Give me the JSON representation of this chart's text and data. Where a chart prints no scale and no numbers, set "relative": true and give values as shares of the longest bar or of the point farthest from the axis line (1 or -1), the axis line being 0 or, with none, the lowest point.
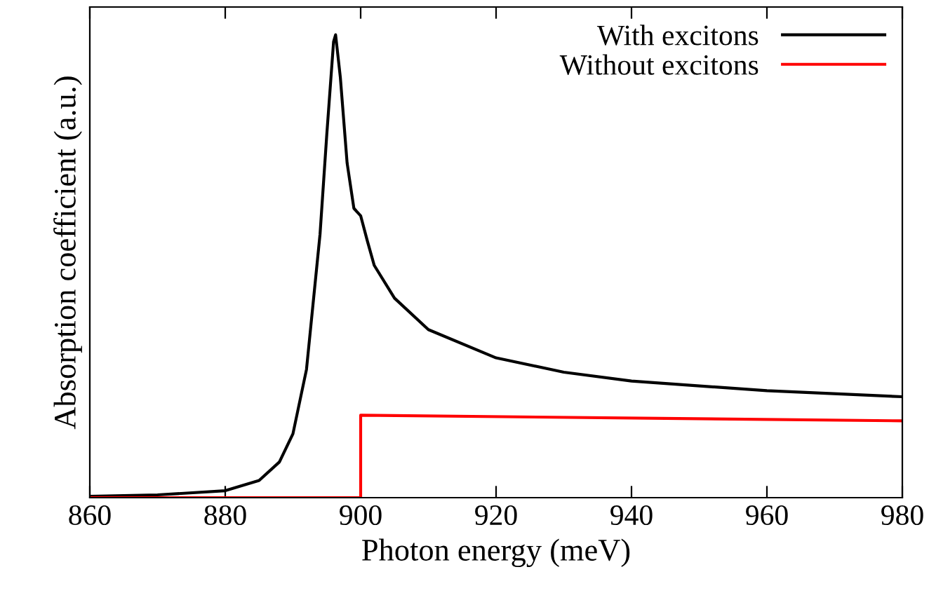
{
  "chart_data": {
    "type": "line",
    "xlabel": "Photon energy (meV)",
    "ylabel": "Absorption coefficient (a.u.)",
    "relative": true,
    "xlim": [
      860,
      980
    ],
    "xticks": [
      860,
      880,
      900,
      920,
      940,
      960,
      980
    ],
    "grid": false,
    "legend": "top right",
    "marker": "none",
    "line_style": "solid",
    "series": [
      {
        "name": "With excitons",
        "color": "#000000",
        "x": [
          860,
          870,
          880,
          885,
          888,
          890,
          892,
          894,
          895,
          896,
          896.3,
          897,
          898,
          899,
          900,
          901,
          902,
          905,
          910,
          920,
          930,
          940,
          960,
          980
        ],
        "values": [
          0.003,
          0.006,
          0.015,
          0.037,
          0.077,
          0.138,
          0.277,
          0.569,
          0.785,
          0.985,
          1,
          0.908,
          0.723,
          0.625,
          0.609,
          0.554,
          0.502,
          0.431,
          0.363,
          0.302,
          0.271,
          0.252,
          0.231,
          0.218
        ]
      },
      {
        "name": "Without excitons",
        "color": "#ff0000",
        "x": [
          860,
          900,
          900,
          980
        ],
        "values": [
          0,
          0,
          0.178,
          0.166
        ]
      }
    ]
  }
}
